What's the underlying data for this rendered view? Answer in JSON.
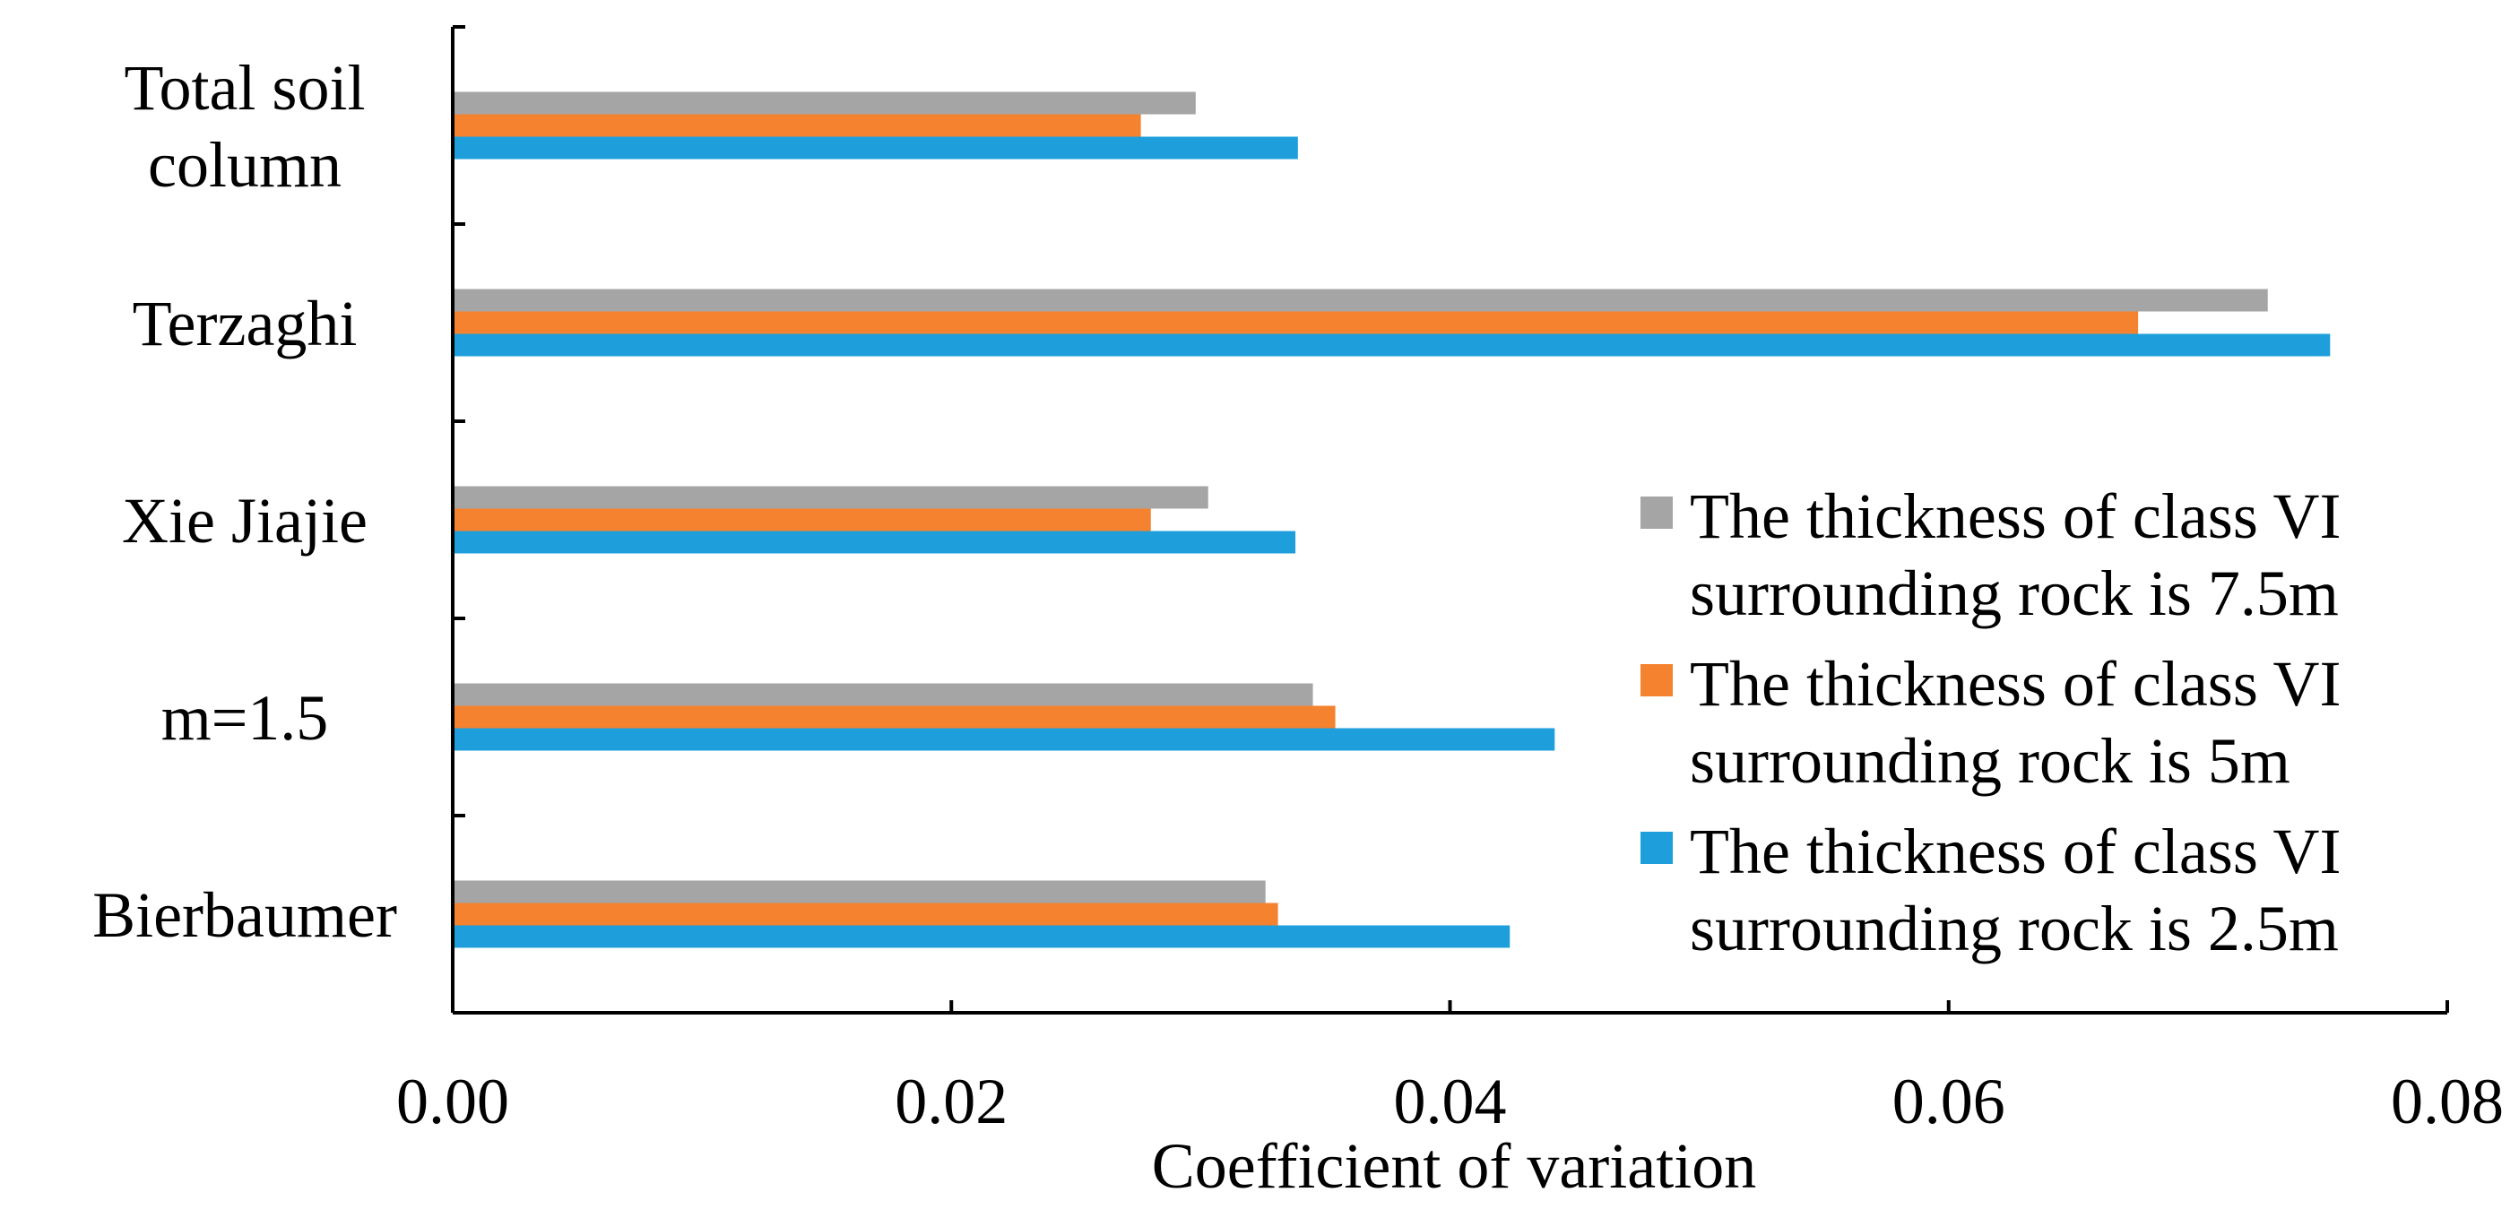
{
  "chart_data": {
    "type": "bar",
    "orientation": "horizontal",
    "categories": [
      "Bierbaumer",
      "m=1.5",
      "Xie Jiajie",
      "Terzaghi",
      "Total soil column"
    ],
    "category_lines": [
      [
        "Bierbaumer"
      ],
      [
        "m=1.5"
      ],
      [
        "Xie Jiajie"
      ],
      [
        "Terzaghi"
      ],
      [
        "Total soil",
        "column"
      ]
    ],
    "series": [
      {
        "name": "The thickness of class VI surrounding rock is 7.5m",
        "legend_lines": [
          "The thickness of class VI",
          "surrounding rock is 7.5m"
        ],
        "color": "#A5A5A5",
        "values": [
          0.0326,
          0.0345,
          0.0303,
          0.0728,
          0.0298
        ]
      },
      {
        "name": "The thickness of class VI surrounding rock is 5m",
        "legend_lines": [
          "The thickness of class VI",
          "surrounding rock is 5m"
        ],
        "color": "#F5822E",
        "values": [
          0.0331,
          0.0354,
          0.028,
          0.0676,
          0.0276
        ]
      },
      {
        "name": "The thickness of class VI surrounding rock is 2.5m",
        "legend_lines": [
          "The thickness of class VI",
          "surrounding rock is 2.5m"
        ],
        "color": "#1E9FDC",
        "values": [
          0.0424,
          0.0442,
          0.0338,
          0.0753,
          0.0339
        ]
      }
    ],
    "title": "",
    "xlabel": "Coefficient of variation",
    "ylabel": "",
    "xlim": [
      0,
      0.08
    ],
    "xticks": [
      "0.00",
      "0.02",
      "0.04",
      "0.06",
      "0.08"
    ],
    "grid": false,
    "legend_position": "bottom-right"
  }
}
